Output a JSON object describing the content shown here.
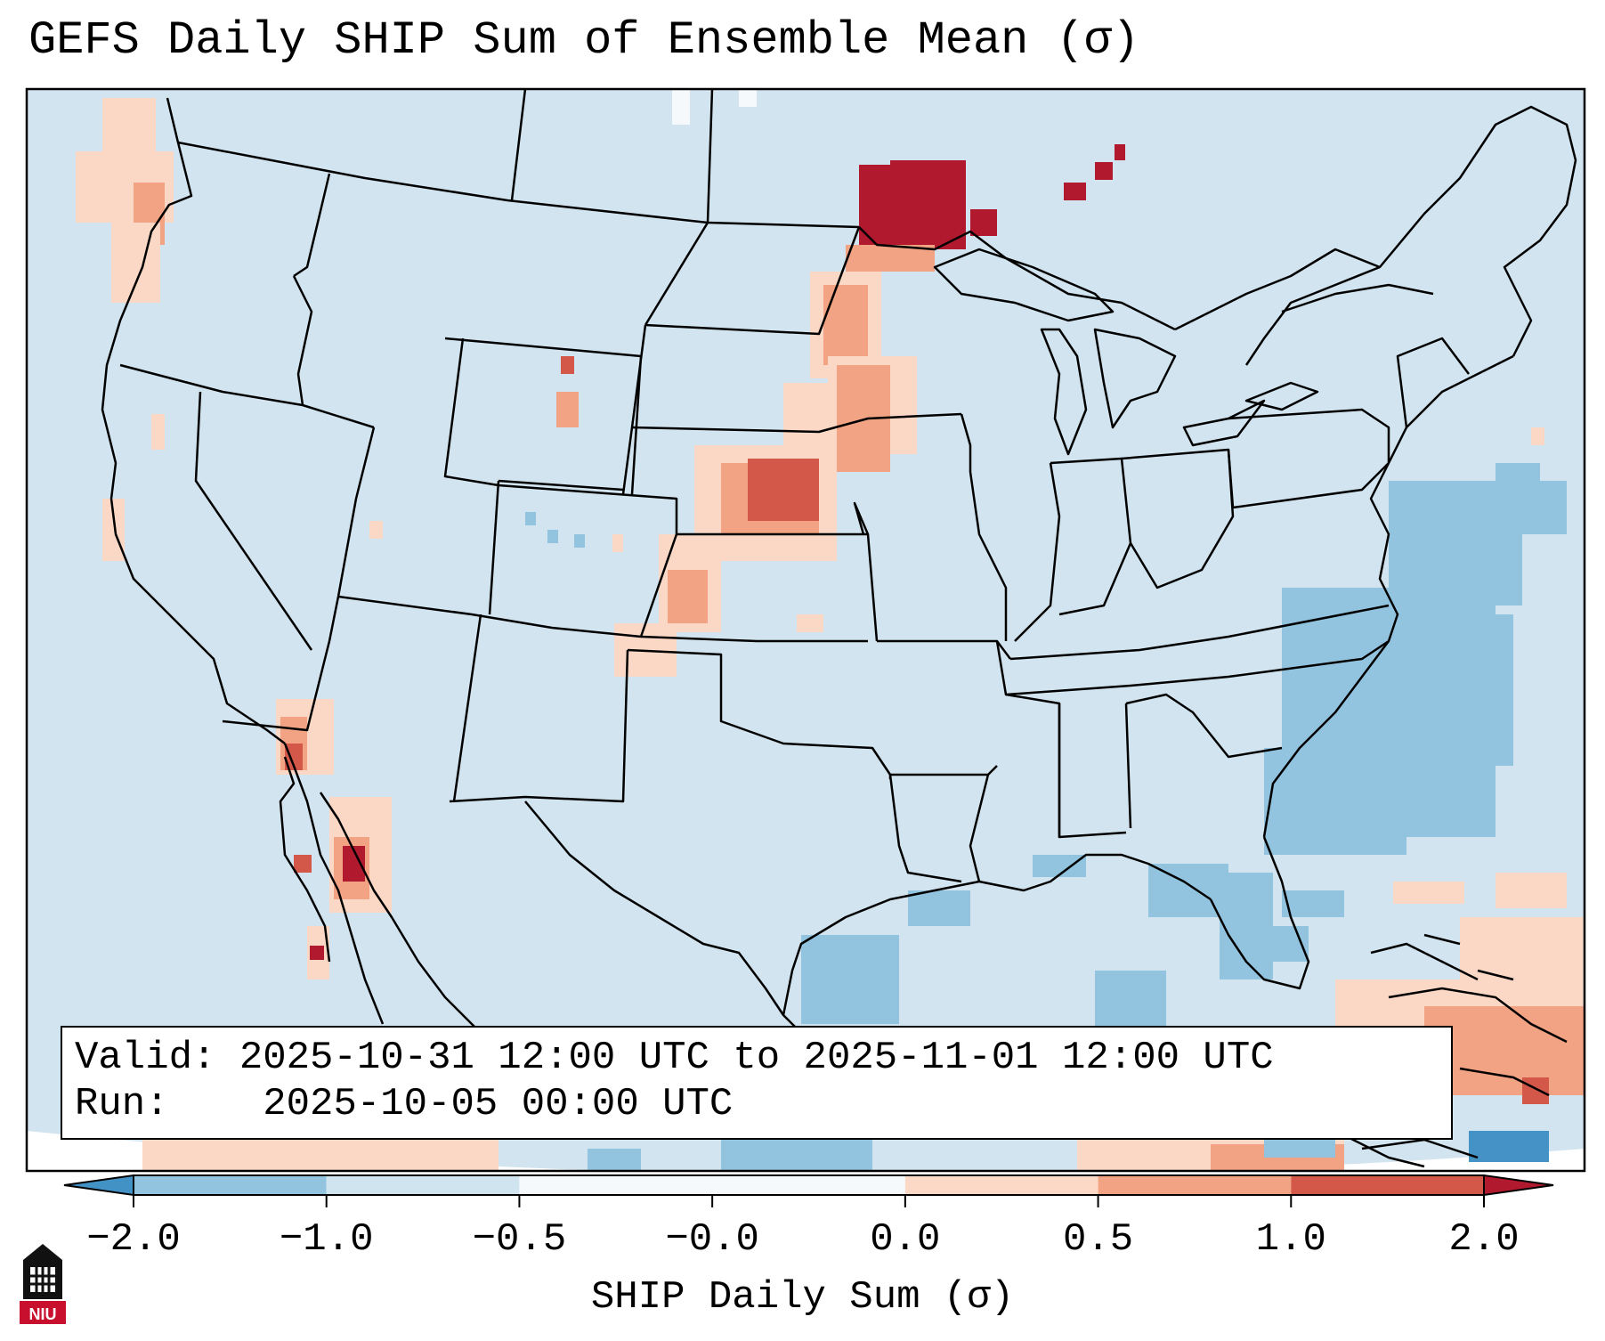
{
  "title": "GEFS Daily SHIP Sum of Ensemble Mean (σ)",
  "info": {
    "valid_label": "Valid:",
    "valid_value": "2025-10-31 12:00 UTC to 2025-11-01 12:00 UTC",
    "run_label": "Run:",
    "run_value": "2025-10-05 00:00 UTC"
  },
  "colorbar": {
    "title": "SHIP Daily Sum (σ)",
    "ticks": [
      "−2.0",
      "−1.0",
      "−0.5",
      "−0.0",
      "0.0",
      "0.5",
      "1.0",
      "2.0"
    ],
    "colors": [
      "#4392c6",
      "#93c4df",
      "#d0e4f0",
      "#f6f9fc",
      "#fbd9c6",
      "#f2a384",
      "#d4584a",
      "#b0192e"
    ]
  },
  "logo": {
    "icon": "niu-logo-icon",
    "text": "NIU"
  },
  "colors": {
    "background": "#d2e4f0",
    "near_zero": "#f6f9fc",
    "light_blue": "#92c3df",
    "mid_blue": "#4492c6",
    "light_red": "#fbd8c6",
    "mid_red": "#f2a384",
    "red": "#d4584a",
    "dark_red": "#b0192e"
  }
}
